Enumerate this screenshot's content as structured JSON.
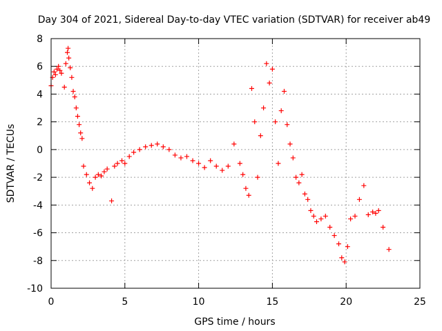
{
  "chart_data": {
    "type": "scatter",
    "title": "Day 304 of 2021, Sidereal Day-to-day VTEC variation (SDTVAR) for receiver ab49",
    "xlabel": "GPS time / hours",
    "ylabel": "SDTVAR / TECUs",
    "xlim": [
      0,
      25
    ],
    "ylim": [
      -10,
      8
    ],
    "xticks": [
      0,
      5,
      10,
      15,
      20,
      25
    ],
    "xtick_labels": [
      "0",
      "5",
      "10",
      "15",
      "20",
      "25"
    ],
    "yticks": [
      -10,
      -8,
      -6,
      -4,
      -2,
      0,
      2,
      4,
      6,
      8
    ],
    "ytick_labels": [
      "-10",
      "-8",
      "-6",
      "-4",
      "-2",
      "0",
      "2",
      "4",
      "6",
      "8"
    ],
    "grid": true,
    "marker": "+",
    "marker_color": "#ff0000",
    "series": [
      {
        "name": "SDTVAR",
        "x": [
          0.0,
          0.1,
          0.2,
          0.3,
          0.4,
          0.5,
          0.6,
          0.7,
          0.9,
          1.0,
          1.1,
          1.15,
          1.2,
          1.3,
          1.4,
          1.5,
          1.6,
          1.7,
          1.8,
          1.9,
          2.0,
          2.1,
          2.2,
          2.4,
          2.6,
          2.8,
          3.0,
          3.2,
          3.4,
          3.6,
          3.8,
          4.1,
          4.3,
          4.5,
          4.8,
          5.0,
          5.3,
          5.6,
          6.0,
          6.4,
          6.8,
          7.2,
          7.6,
          8.0,
          8.4,
          8.8,
          9.2,
          9.6,
          10.0,
          10.4,
          10.8,
          11.2,
          11.6,
          12.0,
          12.4,
          12.8,
          13.0,
          13.2,
          13.4,
          13.6,
          13.8,
          14.0,
          14.2,
          14.4,
          14.6,
          14.8,
          15.0,
          15.2,
          15.4,
          15.6,
          15.8,
          16.0,
          16.2,
          16.4,
          16.6,
          16.8,
          17.0,
          17.2,
          17.4,
          17.6,
          17.8,
          18.0,
          18.3,
          18.6,
          18.9,
          19.2,
          19.5,
          19.7,
          19.9,
          20.1,
          20.3,
          20.6,
          20.9,
          21.2,
          21.5,
          21.8,
          22.0,
          22.2,
          22.5,
          22.9
        ],
        "y": [
          4.6,
          5.2,
          5.6,
          5.4,
          5.8,
          6.0,
          5.7,
          5.5,
          4.5,
          6.2,
          7.0,
          7.3,
          6.6,
          5.9,
          5.2,
          4.2,
          3.8,
          3.0,
          2.4,
          1.8,
          1.2,
          0.8,
          -1.2,
          -1.8,
          -2.4,
          -2.8,
          -2.0,
          -1.8,
          -1.9,
          -1.6,
          -1.4,
          -3.7,
          -1.2,
          -1.0,
          -0.8,
          -1.0,
          -0.5,
          -0.2,
          0.0,
          0.2,
          0.3,
          0.4,
          0.2,
          0.0,
          -0.4,
          -0.6,
          -0.5,
          -0.8,
          -1.0,
          -1.3,
          -0.8,
          -1.2,
          -1.5,
          -1.2,
          0.4,
          -1.0,
          -1.8,
          -2.8,
          -3.3,
          4.4,
          2.0,
          -2.0,
          1.0,
          3.0,
          6.2,
          4.8,
          5.8,
          2.0,
          -1.0,
          2.8,
          4.2,
          1.8,
          0.4,
          -0.6,
          -2.0,
          -2.4,
          -1.8,
          -3.2,
          -3.6,
          -4.4,
          -4.8,
          -5.2,
          -5.0,
          -4.8,
          -5.6,
          -6.2,
          -6.8,
          -7.8,
          -8.1,
          -7.0,
          -5.0,
          -4.8,
          -3.6,
          -2.6,
          -4.7,
          -4.5,
          -4.6,
          -4.4,
          -5.6,
          -7.2
        ]
      }
    ]
  }
}
